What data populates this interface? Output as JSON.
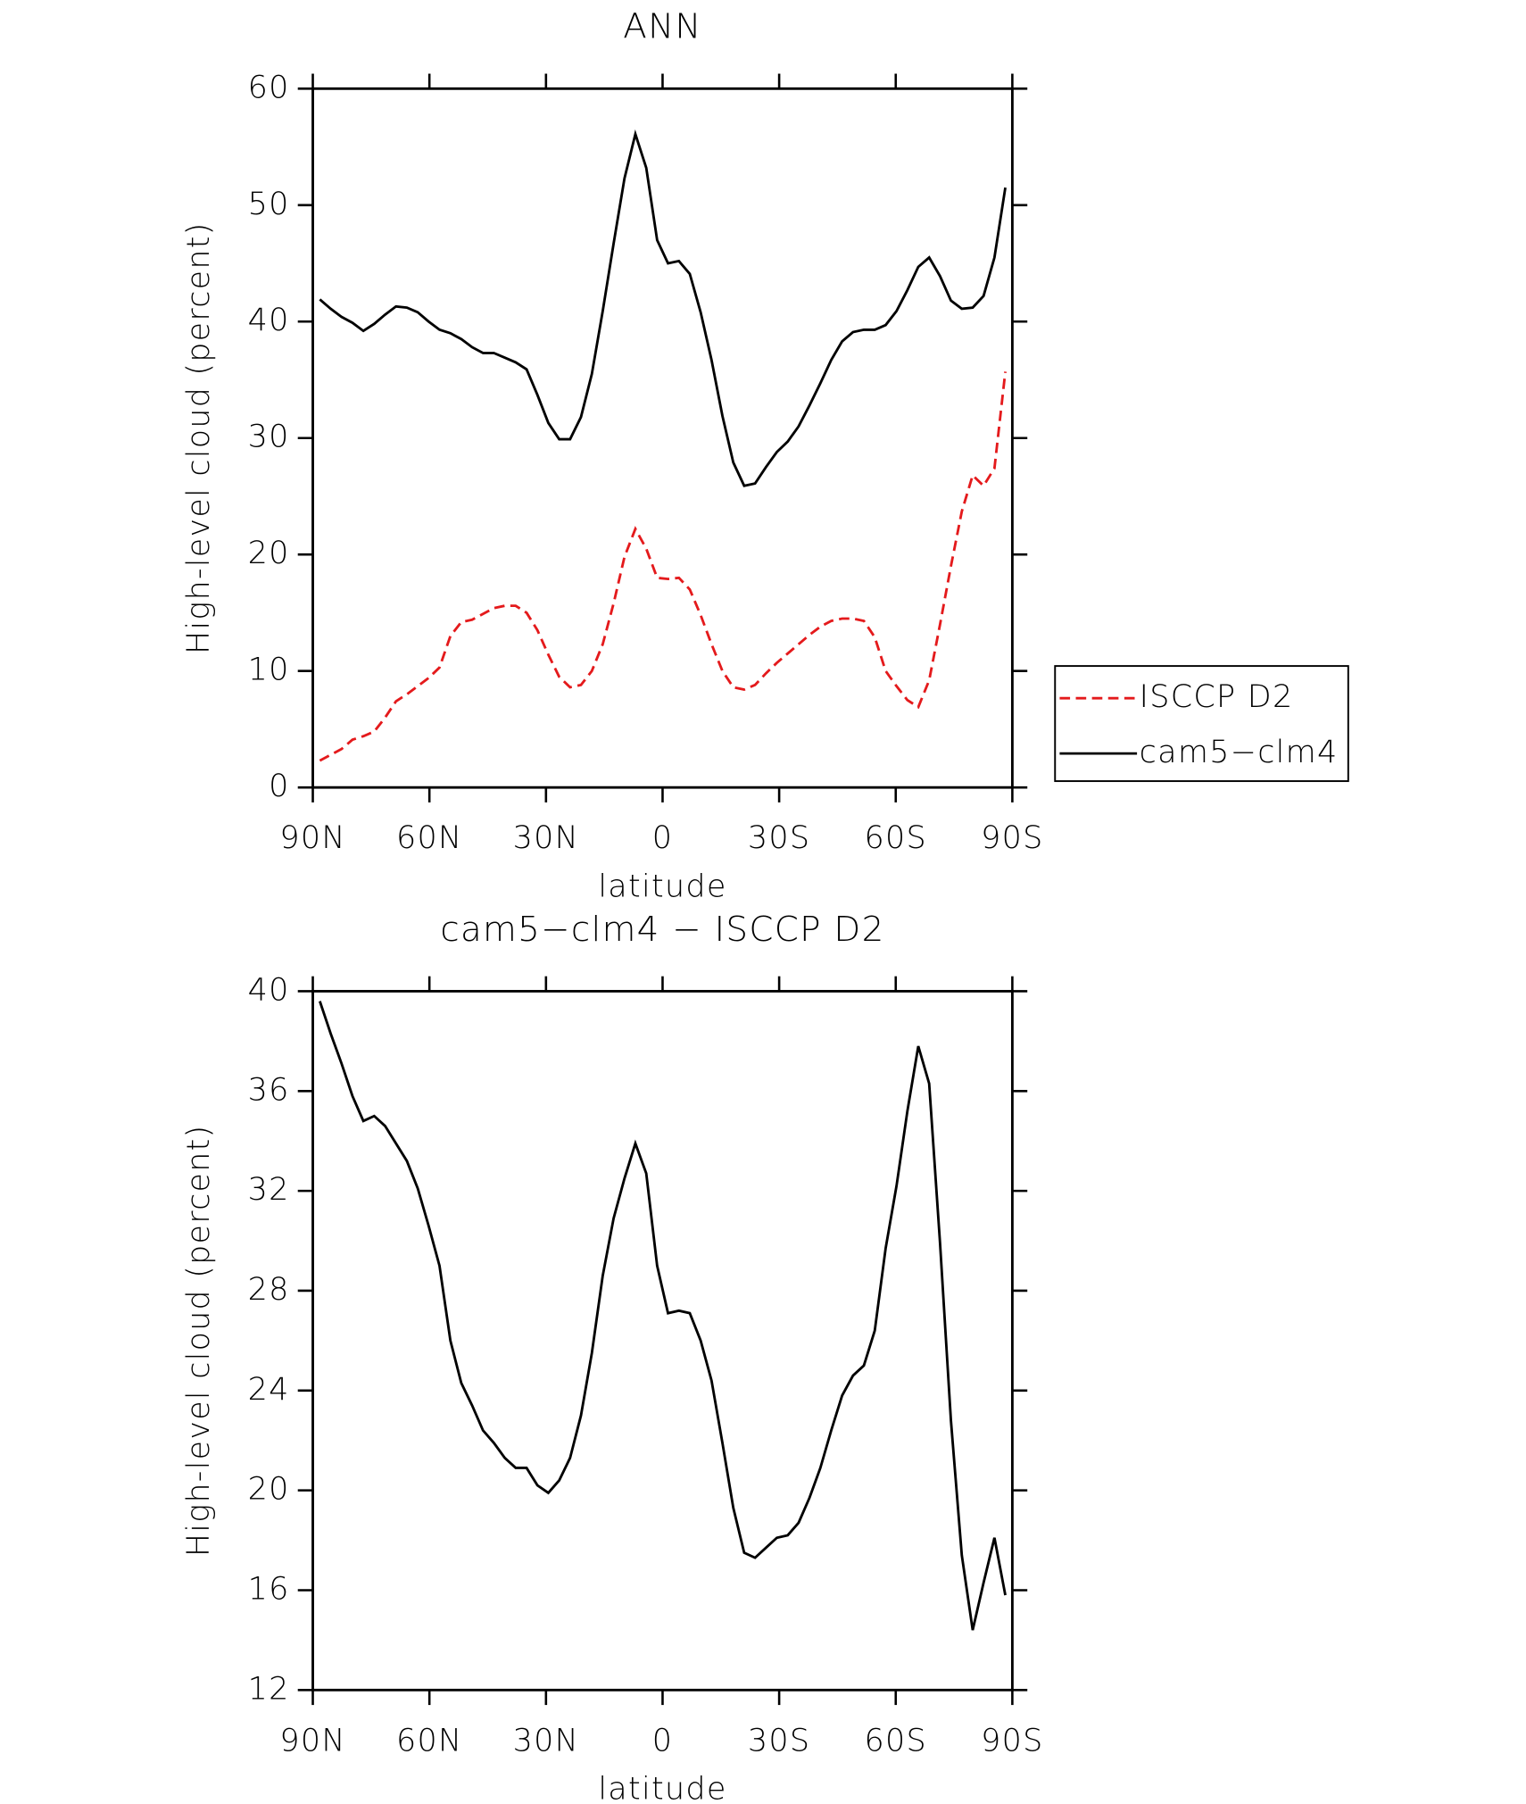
{
  "chart_data": [
    {
      "type": "line",
      "title": "ANN",
      "xlabel": "latitude",
      "ylabel": "High-level cloud (percent)",
      "x": [
        88.2,
        85.4,
        82.6,
        79.8,
        77.0,
        74.2,
        71.4,
        68.6,
        65.8,
        63.0,
        60.2,
        57.4,
        54.6,
        51.8,
        49.0,
        46.2,
        43.4,
        40.6,
        37.8,
        35.0,
        32.2,
        29.4,
        26.6,
        23.8,
        21.0,
        18.2,
        15.4,
        12.6,
        9.8,
        7.0,
        4.2,
        1.4,
        -1.4,
        -4.2,
        -7.0,
        -9.8,
        -12.6,
        -15.4,
        -18.2,
        -21.0,
        -23.8,
        -26.6,
        -29.4,
        -32.2,
        -35.0,
        -37.8,
        -40.6,
        -43.4,
        -46.2,
        -49.0,
        -51.8,
        -54.6,
        -57.4,
        -60.2,
        -63.0,
        -65.8,
        -68.6,
        -71.4,
        -74.2,
        -77.0,
        -79.8,
        -82.6,
        -85.4,
        -88.2
      ],
      "series": [
        {
          "name": "ISCCP D2",
          "color": "#e41a1c",
          "style": "dashed",
          "values": [
            2.3,
            2.8,
            3.3,
            4.1,
            4.4,
            4.8,
            6.0,
            7.4,
            8.0,
            8.7,
            9.4,
            10.3,
            13.0,
            14.2,
            14.4,
            14.9,
            15.4,
            15.6,
            15.6,
            15.0,
            13.5,
            11.4,
            9.5,
            8.6,
            8.8,
            10.0,
            12.3,
            15.8,
            19.8,
            22.2,
            20.5,
            18.0,
            17.9,
            18.0,
            17.0,
            14.8,
            12.3,
            10.0,
            8.6,
            8.4,
            8.8,
            9.8,
            10.7,
            11.5,
            12.3,
            13.1,
            13.8,
            14.3,
            14.5,
            14.5,
            14.3,
            12.9,
            10.0,
            8.7,
            7.5,
            6.9,
            9.2,
            14.0,
            19.0,
            23.7,
            26.8,
            25.9,
            27.4,
            35.7
          ]
        },
        {
          "name": "cam5−clm4",
          "color": "#000000",
          "style": "solid",
          "values": [
            41.9,
            41.1,
            40.4,
            39.9,
            39.2,
            39.8,
            40.6,
            41.3,
            41.2,
            40.8,
            40.0,
            39.3,
            39.0,
            38.5,
            37.8,
            37.3,
            37.3,
            36.9,
            36.5,
            35.9,
            33.7,
            31.3,
            29.9,
            29.9,
            31.8,
            35.5,
            40.9,
            46.7,
            52.3,
            56.1,
            53.2,
            47.0,
            45.0,
            45.2,
            44.1,
            40.8,
            36.7,
            31.9,
            27.9,
            25.9,
            26.1,
            27.5,
            28.8,
            29.7,
            31.0,
            32.8,
            34.7,
            36.7,
            38.3,
            39.1,
            39.3,
            39.3,
            39.7,
            40.9,
            42.7,
            44.7,
            45.5,
            43.9,
            41.8,
            41.1,
            41.2,
            42.2,
            45.5,
            51.5
          ]
        }
      ],
      "xlim": [
        90,
        -90
      ],
      "xticks": [
        {
          "value": 90,
          "label": "90N"
        },
        {
          "value": 60,
          "label": "60N"
        },
        {
          "value": 30,
          "label": "30N"
        },
        0,
        {
          "value": -30,
          "label": "30S"
        },
        {
          "value": -60,
          "label": "60S"
        },
        {
          "value": -90,
          "label": "90S"
        }
      ],
      "ylim": [
        0,
        60
      ],
      "yticks": [
        0,
        10,
        20,
        30,
        40,
        50,
        60
      ],
      "legend": "right"
    },
    {
      "type": "line",
      "title": "cam5−clm4 − ISCCP D2",
      "xlabel": "latitude",
      "ylabel": "High-level cloud (percent)",
      "x": [
        88.2,
        85.4,
        82.6,
        79.8,
        77.0,
        74.2,
        71.4,
        68.6,
        65.8,
        63.0,
        60.2,
        57.4,
        54.6,
        51.8,
        49.0,
        46.2,
        43.4,
        40.6,
        37.8,
        35.0,
        32.2,
        29.4,
        26.6,
        23.8,
        21.0,
        18.2,
        15.4,
        12.6,
        9.8,
        7.0,
        4.2,
        1.4,
        -1.4,
        -4.2,
        -7.0,
        -9.8,
        -12.6,
        -15.4,
        -18.2,
        -21.0,
        -23.8,
        -26.6,
        -29.4,
        -32.2,
        -35.0,
        -37.8,
        -40.6,
        -43.4,
        -46.2,
        -49.0,
        -51.8,
        -54.6,
        -57.4,
        -60.2,
        -63.0,
        -65.8,
        -68.6,
        -71.4,
        -74.2,
        -77.0,
        -79.8,
        -82.6,
        -85.4,
        -88.2
      ],
      "series": [
        {
          "color": "#000000",
          "style": "solid",
          "values": [
            39.6,
            38.3,
            37.1,
            35.8,
            34.8,
            35.0,
            34.6,
            33.9,
            33.2,
            32.1,
            30.6,
            29.0,
            26.0,
            24.3,
            23.4,
            22.4,
            21.9,
            21.3,
            20.9,
            20.9,
            20.2,
            19.9,
            20.4,
            21.3,
            23.0,
            25.5,
            28.6,
            30.9,
            32.5,
            33.9,
            32.7,
            29.0,
            27.1,
            27.2,
            27.1,
            26.0,
            24.4,
            21.9,
            19.3,
            17.5,
            17.3,
            17.7,
            18.1,
            18.2,
            18.7,
            19.7,
            20.9,
            22.4,
            23.8,
            24.6,
            25.0,
            26.4,
            29.7,
            32.2,
            35.2,
            37.8,
            36.3,
            29.9,
            22.8,
            17.4,
            14.4,
            16.3,
            18.1,
            15.8
          ]
        }
      ],
      "xlim": [
        90,
        -90
      ],
      "xticks": [
        {
          "value": 90,
          "label": "90N"
        },
        {
          "value": 60,
          "label": "60N"
        },
        {
          "value": 30,
          "label": "30N"
        },
        0,
        {
          "value": -30,
          "label": "30S"
        },
        {
          "value": -60,
          "label": "60S"
        },
        {
          "value": -90,
          "label": "90S"
        }
      ],
      "ylim": [
        12,
        40
      ],
      "yticks": [
        12,
        16,
        20,
        24,
        28,
        32,
        36,
        40
      ]
    }
  ]
}
